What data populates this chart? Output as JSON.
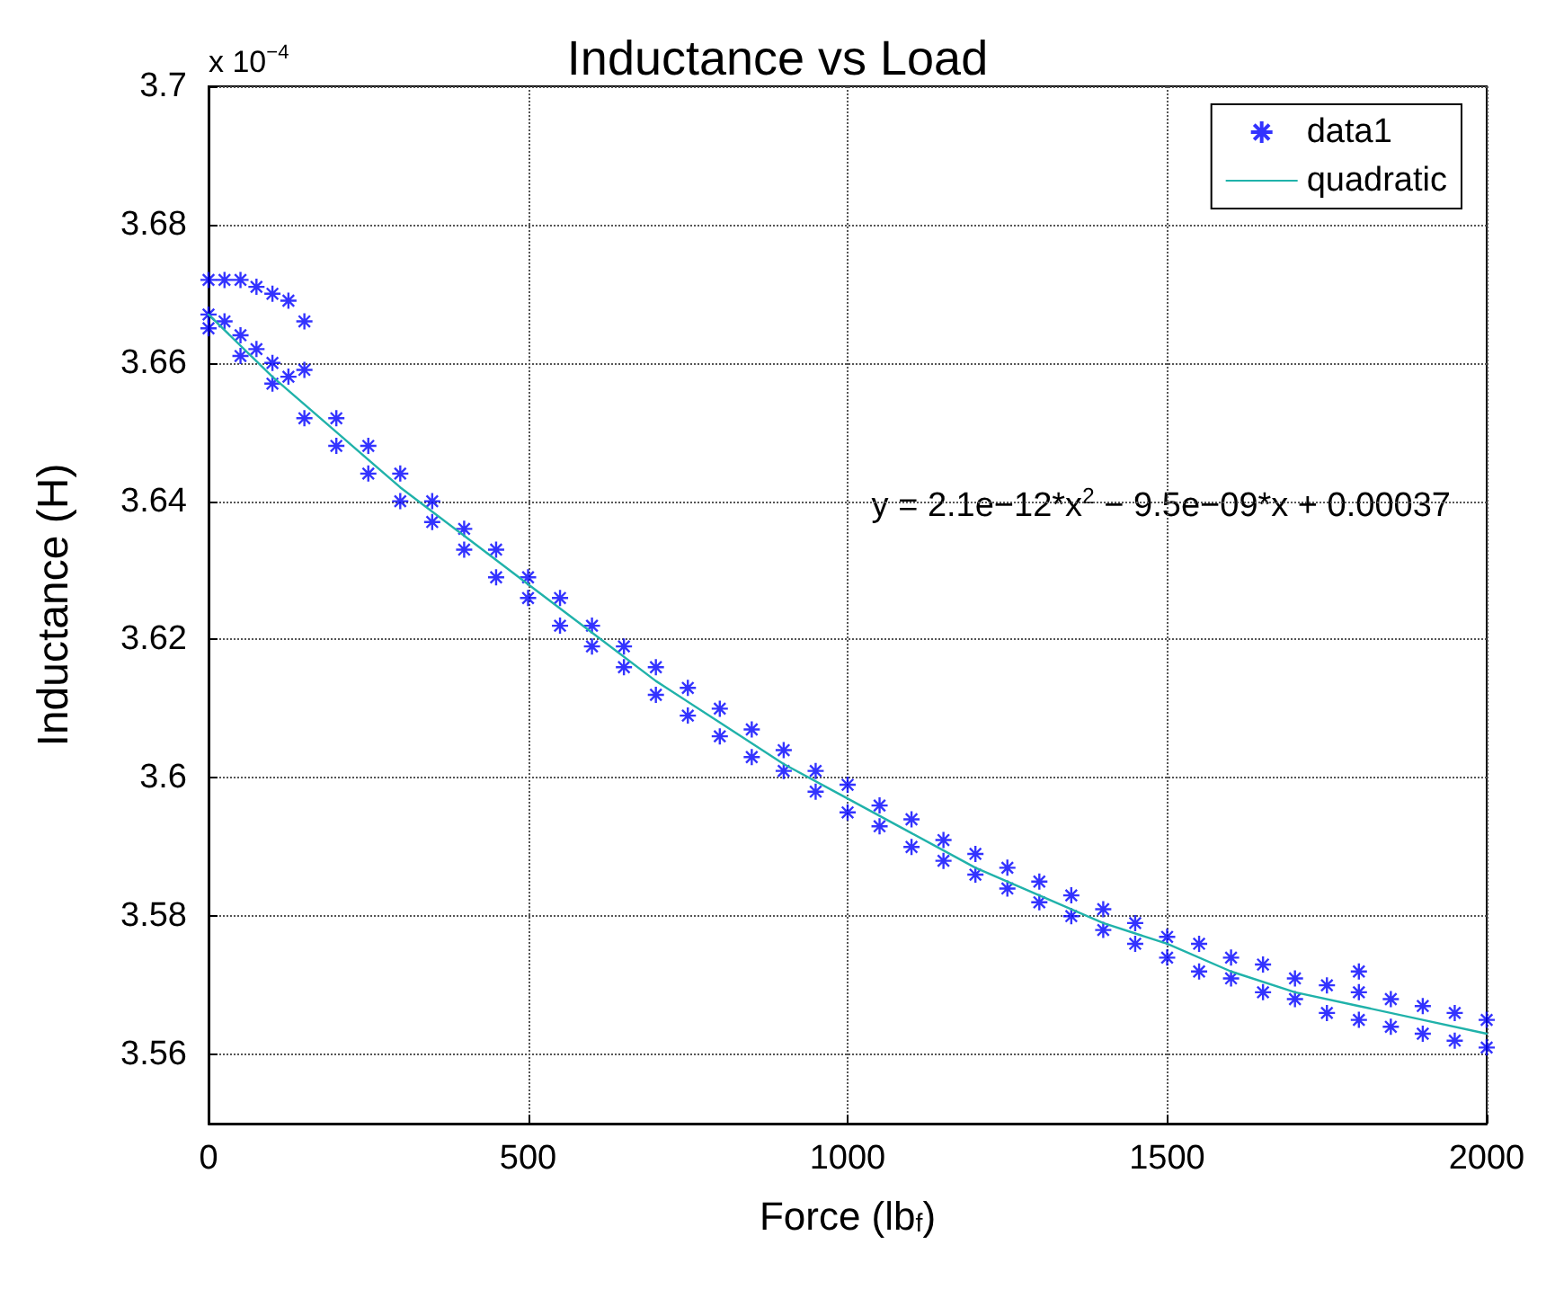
{
  "chart_data": {
    "type": "scatter",
    "title": "Inductance vs Load",
    "xlabel": "Force (lb$_{f}$)",
    "ylabel": "Inductance (H)",
    "annotations": [
      "x 10$^{−4}$",
      "y = 2.1e−12*x$^{2}$ − 9.5e−09*x + 0.00037"
    ],
    "xlim": [
      0,
      2000
    ],
    "xticks": [
      0,
      500,
      1000,
      1500,
      2000
    ],
    "ylim": [
      3.55,
      3.7
    ],
    "yticks": [
      3.56,
      3.58,
      3.6,
      3.62,
      3.64,
      3.66,
      3.68,
      3.7
    ],
    "grid": true,
    "legend": "top right",
    "series": [
      {
        "name": "data1",
        "marker": "cross",
        "color": "#0000ff",
        "x": [
          0,
          25,
          50,
          75,
          100,
          125,
          150,
          0,
          25,
          50,
          75,
          100,
          125,
          150,
          0,
          50,
          100,
          150,
          200,
          250,
          300,
          350,
          400,
          450,
          500,
          550,
          600,
          650,
          700,
          750,
          800,
          850,
          900,
          950,
          1000,
          1050,
          1100,
          1150,
          1200,
          1250,
          1300,
          1350,
          1400,
          1450,
          1500,
          1550,
          1600,
          1650,
          1700,
          1750,
          1800,
          1850,
          1900,
          1950,
          2000,
          200,
          250,
          300,
          350,
          400,
          450,
          500,
          550,
          600,
          650,
          700,
          750,
          800,
          850,
          900,
          950,
          1000,
          1050,
          1100,
          1150,
          1200,
          1250,
          1300,
          1350,
          1400,
          1450,
          1500,
          1550,
          1600,
          1650,
          1700,
          1750,
          1800,
          1850,
          1900,
          1950,
          2000,
          1800
        ],
        "values": [
          3.672,
          3.672,
          3.672,
          3.671,
          3.67,
          3.669,
          3.666,
          3.667,
          3.666,
          3.664,
          3.662,
          3.66,
          3.658,
          3.659,
          3.665,
          3.661,
          3.657,
          3.652,
          3.648,
          3.644,
          3.64,
          3.637,
          3.633,
          3.629,
          3.626,
          3.622,
          3.619,
          3.616,
          3.612,
          3.609,
          3.606,
          3.603,
          3.601,
          3.598,
          3.595,
          3.593,
          3.59,
          3.588,
          3.586,
          3.584,
          3.582,
          3.58,
          3.578,
          3.576,
          3.574,
          3.572,
          3.571,
          3.569,
          3.568,
          3.566,
          3.565,
          3.564,
          3.563,
          3.562,
          3.561,
          3.652,
          3.648,
          3.644,
          3.64,
          3.636,
          3.633,
          3.629,
          3.626,
          3.622,
          3.619,
          3.616,
          3.613,
          3.61,
          3.607,
          3.604,
          3.601,
          3.599,
          3.596,
          3.594,
          3.591,
          3.589,
          3.587,
          3.585,
          3.583,
          3.581,
          3.579,
          3.577,
          3.576,
          3.574,
          3.573,
          3.571,
          3.57,
          3.569,
          3.568,
          3.567,
          3.566,
          3.565,
          3.572
        ]
      },
      {
        "name": "quadratic",
        "type": "line",
        "marker": "none",
        "line_style": "solid",
        "color": "#20b2aa",
        "x": [
          0,
          100,
          200,
          300,
          400,
          500,
          600,
          700,
          800,
          900,
          1000,
          1100,
          1200,
          1300,
          1400,
          1500,
          1600,
          1700,
          1800,
          1900,
          2000
        ],
        "values": [
          3.667,
          3.658,
          3.65,
          3.642,
          3.635,
          3.628,
          3.621,
          3.614,
          3.608,
          3.602,
          3.597,
          3.592,
          3.587,
          3.583,
          3.579,
          3.576,
          3.572,
          3.569,
          3.567,
          3.565,
          3.563
        ]
      }
    ]
  }
}
